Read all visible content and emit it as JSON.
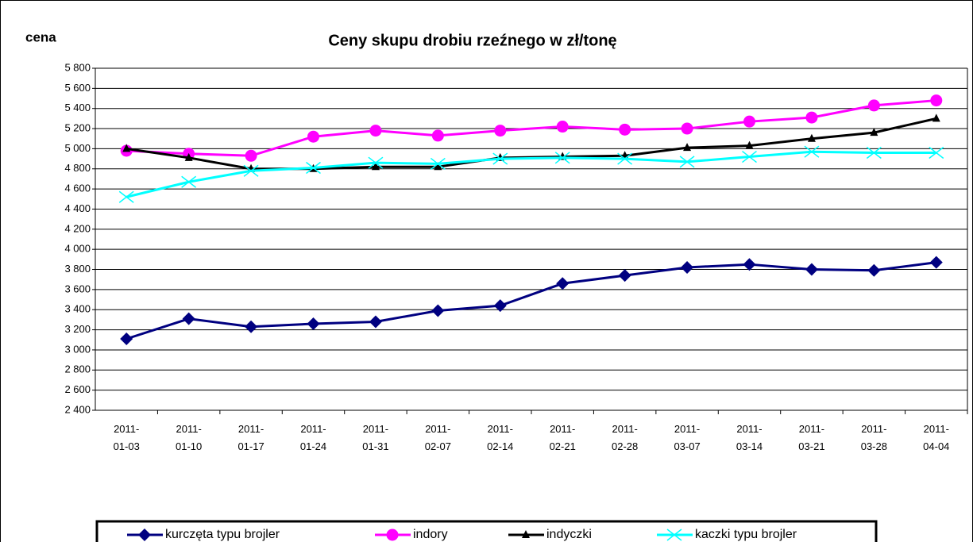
{
  "chart_data": {
    "type": "line",
    "title": "Ceny skupu drobiu rzeźnego w zł/tonę",
    "y_label": "cena",
    "categories": [
      "2011-01-03",
      "2011-01-10",
      "2011-01-17",
      "2011-01-24",
      "2011-01-31",
      "2011-02-07",
      "2011-02-14",
      "2011-02-21",
      "2011-02-28",
      "2011-03-07",
      "2011-03-14",
      "2011-03-21",
      "2011-03-28",
      "2011-04-04"
    ],
    "series": [
      {
        "name": "kurczęta typu brojler",
        "color": "#000080",
        "marker": "diamond",
        "values": [
          3110,
          3310,
          3230,
          3260,
          3280,
          3390,
          3440,
          3660,
          3740,
          3820,
          3850,
          3800,
          3790,
          3870
        ]
      },
      {
        "name": "indory",
        "color": "#ff00ff",
        "marker": "circle",
        "values": [
          4980,
          4950,
          4930,
          5120,
          5180,
          5130,
          5180,
          5220,
          5190,
          5200,
          5270,
          5310,
          5430,
          5480
        ]
      },
      {
        "name": "indyczki",
        "color": "#000000",
        "marker": "triangle",
        "values": [
          5000,
          4910,
          4800,
          4800,
          4820,
          4820,
          4910,
          4920,
          4930,
          5010,
          5030,
          5100,
          5160,
          5300
        ]
      },
      {
        "name": "kaczki typu brojler",
        "color": "#00ffff",
        "marker": "x",
        "values": [
          4520,
          4670,
          4780,
          4810,
          4860,
          4850,
          4900,
          4910,
          4900,
          4870,
          4920,
          4970,
          4960,
          4960
        ]
      }
    ],
    "ylim": [
      2400,
      5800
    ],
    "yticks": [
      {
        "value": 2400,
        "label": "2 400"
      },
      {
        "value": 2600,
        "label": "2 600"
      },
      {
        "value": 2800,
        "label": "2 800"
      },
      {
        "value": 3000,
        "label": "3 000"
      },
      {
        "value": 3200,
        "label": "3 200"
      },
      {
        "value": 3400,
        "label": "3 400"
      },
      {
        "value": 3600,
        "label": "3 600"
      },
      {
        "value": 3800,
        "label": "3 800"
      },
      {
        "value": 4000,
        "label": "4 000"
      },
      {
        "value": 4200,
        "label": "4 200"
      },
      {
        "value": 4400,
        "label": "4 400"
      },
      {
        "value": 4600,
        "label": "4 600"
      },
      {
        "value": 4800,
        "label": "4 800"
      },
      {
        "value": 5000,
        "label": "5 000"
      },
      {
        "value": 5200,
        "label": "5 200"
      },
      {
        "value": 5400,
        "label": "5 400"
      },
      {
        "value": 5600,
        "label": "5 600"
      },
      {
        "value": 5800,
        "label": "5 800"
      }
    ],
    "grid": true,
    "legend": "bottom"
  }
}
